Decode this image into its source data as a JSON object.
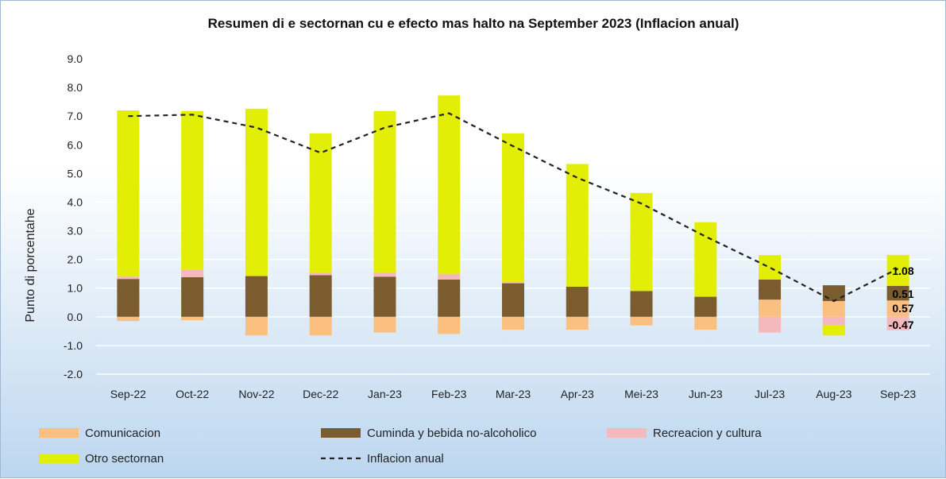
{
  "chart_data": {
    "type": "bar",
    "stacked": true,
    "title": "Resumen di e sectornan cu e efecto mas halto na September 2023 (Inflacion anual)",
    "xlabel": "",
    "ylabel": "Punto di porcentahe",
    "ylim": [
      -2.0,
      9.0
    ],
    "yticks": [
      "9.0",
      "8.0",
      "7.0",
      "6.0",
      "5.0",
      "4.0",
      "3.0",
      "2.0",
      "1.0",
      "0.0",
      "-1.0",
      "-2.0"
    ],
    "grid": true,
    "legend_position": "bottom",
    "categories": [
      "Sep-22",
      "Oct-22",
      "Nov-22",
      "Dec-22",
      "Jan-23",
      "Feb-23",
      "Mar-23",
      "Apr-23",
      "Mei-23",
      "Jun-23",
      "Jul-23",
      "Aug-23",
      "Sep-23"
    ],
    "series": [
      {
        "name": "Comunicacion",
        "kind": "bar",
        "color": "#fbbf80",
        "values": [
          -0.15,
          -0.12,
          -0.65,
          -0.65,
          -0.55,
          -0.6,
          -0.45,
          -0.45,
          -0.3,
          -0.45,
          0.6,
          0.55,
          0.57
        ]
      },
      {
        "name": "Cuminda y bebida no-alcoholico",
        "kind": "bar",
        "color": "#7a5c2e",
        "values": [
          1.32,
          1.38,
          1.42,
          1.45,
          1.4,
          1.3,
          1.17,
          1.05,
          0.9,
          0.7,
          0.7,
          0.55,
          0.51
        ]
      },
      {
        "name": "Recreacion y cultura",
        "kind": "bar",
        "color": "#f5b8bd",
        "values": [
          0.08,
          0.28,
          0.02,
          0.1,
          0.15,
          0.2,
          0.05,
          0.0,
          0.0,
          0.0,
          -0.55,
          -0.3,
          -0.47
        ]
      },
      {
        "name": "Otro sectornan",
        "kind": "bar",
        "color": "#e2ee05",
        "values": [
          5.8,
          5.52,
          5.82,
          4.85,
          5.63,
          6.22,
          5.18,
          4.28,
          3.42,
          2.6,
          0.85,
          -0.35,
          1.08
        ]
      },
      {
        "name": "Inflacion anual",
        "kind": "line",
        "style": "dashed",
        "color": "#222222",
        "values": [
          7.0,
          7.05,
          6.6,
          5.72,
          6.6,
          7.1,
          5.95,
          4.85,
          3.95,
          2.8,
          1.72,
          0.55,
          1.68
        ]
      }
    ],
    "data_labels": {
      "category": "Sep-23",
      "labels": [
        "1.08",
        "0.51",
        "0.57",
        "-0.47"
      ]
    }
  }
}
